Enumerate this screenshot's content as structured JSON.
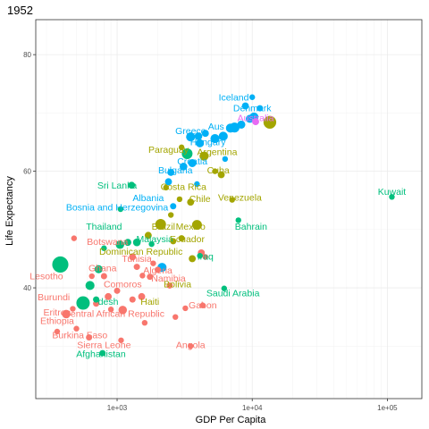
{
  "chart_data": {
    "type": "scatter",
    "title": "1952",
    "xlabel": "GDP Per Capita",
    "ylabel": "Life Expectancy",
    "x_scale": "log10",
    "xlim": [
      250,
      180000
    ],
    "ylim": [
      21,
      86
    ],
    "x_ticks": [
      1000,
      10000,
      100000
    ],
    "x_tick_labels": [
      "1e+03",
      "1e+04",
      "1e+05"
    ],
    "y_ticks": [
      40,
      60,
      80
    ],
    "y_tick_labels": [
      "40",
      "60",
      "80"
    ],
    "grid": true,
    "legend": "none",
    "colors": {
      "Africa": "#F8766D",
      "Americas": "#A3A500",
      "Asia": "#00BF7D",
      "Europe": "#00B0F6",
      "Oceania": "#E76BF3"
    },
    "points": [
      {
        "x": 380,
        "y": 44.0,
        "size": 8.0,
        "group": "Asia"
      },
      {
        "x": 560,
        "y": 37.4,
        "size": 5.5,
        "group": "Asia"
      },
      {
        "x": 360,
        "y": 32.5,
        "size": 1.0,
        "group": "Africa"
      },
      {
        "x": 420,
        "y": 35.5,
        "size": 2.2,
        "group": "Africa"
      },
      {
        "x": 470,
        "y": 36.4,
        "size": 1.0,
        "group": "Africa"
      },
      {
        "x": 500,
        "y": 33.0,
        "size": 1.0,
        "group": "Africa"
      },
      {
        "x": 620,
        "y": 31.5,
        "size": 1.2,
        "group": "Africa"
      },
      {
        "x": 700,
        "y": 37.3,
        "size": 1.2,
        "group": "Africa"
      },
      {
        "x": 730,
        "y": 43.2,
        "size": 2.0,
        "group": "Asia"
      },
      {
        "x": 780,
        "y": 28.8,
        "size": 1.2,
        "group": "Asia"
      },
      {
        "x": 800,
        "y": 42.0,
        "size": 1.2,
        "group": "Africa"
      },
      {
        "x": 860,
        "y": 38.5,
        "size": 1.5,
        "group": "Africa"
      },
      {
        "x": 900,
        "y": 36.3,
        "size": 1.0,
        "group": "Africa"
      },
      {
        "x": 1000,
        "y": 39.5,
        "size": 1.2,
        "group": "Africa"
      },
      {
        "x": 1100,
        "y": 36.2,
        "size": 2.2,
        "group": "Africa"
      },
      {
        "x": 1300,
        "y": 38.0,
        "size": 1.2,
        "group": "Africa"
      },
      {
        "x": 1520,
        "y": 38.5,
        "size": 1.5,
        "group": "Africa"
      },
      {
        "x": 1400,
        "y": 43.6,
        "size": 1.2,
        "group": "Africa"
      },
      {
        "x": 1300,
        "y": 45.3,
        "size": 1.5,
        "group": "Africa"
      },
      {
        "x": 1540,
        "y": 42.1,
        "size": 1.0,
        "group": "Africa"
      },
      {
        "x": 1750,
        "y": 41.9,
        "size": 1.2,
        "group": "Africa"
      },
      {
        "x": 2000,
        "y": 43.1,
        "size": 1.2,
        "group": "Africa"
      },
      {
        "x": 2450,
        "y": 40.4,
        "size": 1.2,
        "group": "Africa"
      },
      {
        "x": 2700,
        "y": 35.0,
        "size": 1.0,
        "group": "Africa"
      },
      {
        "x": 3200,
        "y": 36.5,
        "size": 1.0,
        "group": "Africa"
      },
      {
        "x": 3500,
        "y": 30.0,
        "size": 1.0,
        "group": "Africa"
      },
      {
        "x": 4300,
        "y": 37.0,
        "size": 1.0,
        "group": "Africa"
      },
      {
        "x": 4500,
        "y": 45.3,
        "size": 1.0,
        "group": "Africa"
      },
      {
        "x": 480,
        "y": 48.5,
        "size": 1.0,
        "group": "Africa"
      },
      {
        "x": 650,
        "y": 42.0,
        "size": 1.0,
        "group": "Africa"
      },
      {
        "x": 1070,
        "y": 31.0,
        "size": 1.0,
        "group": "Africa"
      },
      {
        "x": 1600,
        "y": 34.0,
        "size": 1.0,
        "group": "Africa"
      },
      {
        "x": 2150,
        "y": 43.5,
        "size": 2.5,
        "group": "Europe"
      },
      {
        "x": 1850,
        "y": 44.2,
        "size": 1.0,
        "group": "Africa"
      },
      {
        "x": 1280,
        "y": 57.6,
        "size": 1.5,
        "group": "Asia"
      },
      {
        "x": 1700,
        "y": 49.0,
        "size": 1.5,
        "group": "Americas"
      },
      {
        "x": 2100,
        "y": 50.9,
        "size": 3.5,
        "group": "Americas"
      },
      {
        "x": 2600,
        "y": 48.0,
        "size": 1.2,
        "group": "Americas"
      },
      {
        "x": 3000,
        "y": 48.5,
        "size": 1.2,
        "group": "Americas"
      },
      {
        "x": 3600,
        "y": 45.0,
        "size": 1.5,
        "group": "Americas"
      },
      {
        "x": 3500,
        "y": 54.7,
        "size": 1.5,
        "group": "Americas"
      },
      {
        "x": 3900,
        "y": 50.8,
        "size": 3.0,
        "group": "Americas"
      },
      {
        "x": 2300,
        "y": 57.2,
        "size": 1.0,
        "group": "Americas"
      },
      {
        "x": 3300,
        "y": 63.0,
        "size": 3.5,
        "group": "Asia"
      },
      {
        "x": 3000,
        "y": 64.1,
        "size": 1.0,
        "group": "Americas"
      },
      {
        "x": 4400,
        "y": 62.6,
        "size": 2.5,
        "group": "Americas"
      },
      {
        "x": 5900,
        "y": 59.4,
        "size": 1.5,
        "group": "Americas"
      },
      {
        "x": 7100,
        "y": 55.1,
        "size": 1.0,
        "group": "Americas"
      },
      {
        "x": 5300,
        "y": 60.0,
        "size": 1.0,
        "group": "Americas"
      },
      {
        "x": 2900,
        "y": 55.2,
        "size": 1.0,
        "group": "Americas"
      },
      {
        "x": 2500,
        "y": 52.5,
        "size": 1.0,
        "group": "Americas"
      },
      {
        "x": 13500,
        "y": 68.4,
        "size": 5.0,
        "group": "Americas"
      },
      {
        "x": 6200,
        "y": 39.9,
        "size": 1.0,
        "group": "Asia"
      },
      {
        "x": 4100,
        "y": 45.5,
        "size": 1.0,
        "group": "Asia"
      },
      {
        "x": 7900,
        "y": 51.6,
        "size": 1.0,
        "group": "Asia"
      },
      {
        "x": 108000,
        "y": 55.6,
        "size": 1.0,
        "group": "Asia"
      },
      {
        "x": 1200,
        "y": 47.8,
        "size": 1.5,
        "group": "Asia"
      },
      {
        "x": 1800,
        "y": 47.5,
        "size": 1.0,
        "group": "Asia"
      },
      {
        "x": 4200,
        "y": 46.0,
        "size": 1.5,
        "group": "Africa"
      },
      {
        "x": 1050,
        "y": 47.4,
        "size": 2.2,
        "group": "Asia"
      },
      {
        "x": 1400,
        "y": 47.8,
        "size": 1.8,
        "group": "Asia"
      },
      {
        "x": 630,
        "y": 40.4,
        "size": 2.5,
        "group": "Asia"
      },
      {
        "x": 700,
        "y": 38.0,
        "size": 1.2,
        "group": "Asia"
      },
      {
        "x": 1060,
        "y": 53.5,
        "size": 1.0,
        "group": "Asia"
      },
      {
        "x": 800,
        "y": 46.8,
        "size": 1.0,
        "group": "Asia"
      },
      {
        "x": 2600,
        "y": 54.0,
        "size": 1.2,
        "group": "Europe"
      },
      {
        "x": 2400,
        "y": 58.2,
        "size": 1.5,
        "group": "Europe"
      },
      {
        "x": 2500,
        "y": 59.8,
        "size": 1.5,
        "group": "Europe"
      },
      {
        "x": 3100,
        "y": 60.8,
        "size": 1.8,
        "group": "Europe"
      },
      {
        "x": 3600,
        "y": 61.4,
        "size": 2.0,
        "group": "Europe"
      },
      {
        "x": 4100,
        "y": 64.8,
        "size": 2.0,
        "group": "Europe"
      },
      {
        "x": 3500,
        "y": 65.9,
        "size": 2.5,
        "group": "Europe"
      },
      {
        "x": 4000,
        "y": 66.0,
        "size": 1.8,
        "group": "Europe"
      },
      {
        "x": 4500,
        "y": 66.5,
        "size": 1.5,
        "group": "Europe"
      },
      {
        "x": 5300,
        "y": 65.6,
        "size": 2.5,
        "group": "Europe"
      },
      {
        "x": 6100,
        "y": 66.0,
        "size": 2.5,
        "group": "Europe"
      },
      {
        "x": 6900,
        "y": 67.4,
        "size": 2.5,
        "group": "Europe"
      },
      {
        "x": 7400,
        "y": 67.5,
        "size": 3.0,
        "group": "Europe"
      },
      {
        "x": 8300,
        "y": 68.0,
        "size": 2.0,
        "group": "Europe"
      },
      {
        "x": 8900,
        "y": 71.2,
        "size": 1.5,
        "group": "Europe"
      },
      {
        "x": 9600,
        "y": 69.0,
        "size": 2.0,
        "group": "Europe"
      },
      {
        "x": 10000,
        "y": 72.7,
        "size": 1.0,
        "group": "Europe"
      },
      {
        "x": 10600,
        "y": 68.5,
        "size": 1.5,
        "group": "Oceania"
      },
      {
        "x": 10300,
        "y": 69.3,
        "size": 2.5,
        "group": "Europe"
      },
      {
        "x": 11400,
        "y": 70.8,
        "size": 1.2,
        "group": "Europe"
      },
      {
        "x": 6300,
        "y": 62.1,
        "size": 1.0,
        "group": "Europe"
      },
      {
        "x": 3900,
        "y": 57.8,
        "size": 1.0,
        "group": "Europe"
      }
    ],
    "labels": [
      {
        "text": "Iceland",
        "x": 7300,
        "y": 72.7,
        "group": "Europe"
      },
      {
        "text": "Denmark",
        "x": 10000,
        "y": 70.8,
        "group": "Europe"
      },
      {
        "text": "Australia",
        "x": 10600,
        "y": 69.1,
        "group": "Oceania"
      },
      {
        "text": "Aus",
        "x": 5400,
        "y": 67.7,
        "group": "Europe"
      },
      {
        "text": "Greece",
        "x": 3500,
        "y": 66.9,
        "group": "Europe"
      },
      {
        "text": "Hungary",
        "x": 4700,
        "y": 65.0,
        "group": "Europe"
      },
      {
        "text": "Paraguay",
        "x": 2400,
        "y": 63.7,
        "group": "Americas"
      },
      {
        "text": "Argentina",
        "x": 5500,
        "y": 63.3,
        "group": "Americas"
      },
      {
        "text": "Croatia",
        "x": 3600,
        "y": 61.7,
        "group": "Europe"
      },
      {
        "text": "Bulgaria",
        "x": 2700,
        "y": 60.2,
        "group": "Europe"
      },
      {
        "text": "Cuba",
        "x": 5600,
        "y": 60.2,
        "group": "Americas"
      },
      {
        "text": "Sri Lanka",
        "x": 1000,
        "y": 57.6,
        "group": "Asia"
      },
      {
        "text": "Costa Rica",
        "x": 3100,
        "y": 57.3,
        "group": "Americas"
      },
      {
        "text": "Albania",
        "x": 1700,
        "y": 55.4,
        "group": "Europe"
      },
      {
        "text": "Chile",
        "x": 4100,
        "y": 55.3,
        "group": "Americas"
      },
      {
        "text": "Venezuela",
        "x": 8100,
        "y": 55.5,
        "group": "Americas"
      },
      {
        "text": "Kuwait",
        "x": 108000,
        "y": 56.5,
        "group": "Asia"
      },
      {
        "text": "Bosnia and Herzegovina",
        "x": 1000,
        "y": 53.8,
        "group": "Europe"
      },
      {
        "text": "Thailand",
        "x": 800,
        "y": 50.5,
        "group": "Asia"
      },
      {
        "text": "Brazil",
        "x": 2200,
        "y": 50.5,
        "group": "Americas"
      },
      {
        "text": "Mexico",
        "x": 3500,
        "y": 50.5,
        "group": "Americas"
      },
      {
        "text": "Bahrain",
        "x": 9800,
        "y": 50.5,
        "group": "Asia"
      },
      {
        "text": "Malaysia",
        "x": 1900,
        "y": 48.4,
        "group": "Asia"
      },
      {
        "text": "Ecuador",
        "x": 3300,
        "y": 48.4,
        "group": "Americas"
      },
      {
        "text": "Botswana",
        "x": 850,
        "y": 47.9,
        "group": "Africa"
      },
      {
        "text": "Dominican Republic",
        "x": 1500,
        "y": 46.2,
        "group": "Americas"
      },
      {
        "text": "Iraq",
        "x": 4500,
        "y": 45.4,
        "group": "Asia"
      },
      {
        "text": "Tunisia",
        "x": 1400,
        "y": 45.0,
        "group": "Africa"
      },
      {
        "text": "Lesotho",
        "x": 300,
        "y": 42.0,
        "group": "Africa"
      },
      {
        "text": "Ghana",
        "x": 780,
        "y": 43.4,
        "group": "Africa"
      },
      {
        "text": "Algeria",
        "x": 2000,
        "y": 43.0,
        "group": "Africa"
      },
      {
        "text": "Namibia",
        "x": 2400,
        "y": 41.6,
        "group": "Africa"
      },
      {
        "text": "Comoros",
        "x": 1100,
        "y": 40.6,
        "group": "Africa"
      },
      {
        "text": "Bolivia",
        "x": 2800,
        "y": 40.6,
        "group": "Americas"
      },
      {
        "text": "Saudi Arabia",
        "x": 7200,
        "y": 39.1,
        "group": "Asia"
      },
      {
        "text": "Burundi",
        "x": 340,
        "y": 38.4,
        "group": "Africa"
      },
      {
        "text": "desh",
        "x": 860,
        "y": 37.6,
        "group": "Asia"
      },
      {
        "text": "Haiti",
        "x": 1750,
        "y": 37.6,
        "group": "Americas"
      },
      {
        "text": "Gabon",
        "x": 4300,
        "y": 37.0,
        "group": "Africa"
      },
      {
        "text": "Eritrea",
        "x": 360,
        "y": 35.8,
        "group": "Africa"
      },
      {
        "text": "Central African Republic",
        "x": 950,
        "y": 35.6,
        "group": "Africa"
      },
      {
        "text": "Ethiopia",
        "x": 360,
        "y": 34.3,
        "group": "Africa"
      },
      {
        "text": "Burkina Faso",
        "x": 530,
        "y": 31.9,
        "group": "Africa"
      },
      {
        "text": "Sierra Leone",
        "x": 800,
        "y": 30.2,
        "group": "Africa"
      },
      {
        "text": "Angola",
        "x": 3500,
        "y": 30.2,
        "group": "Africa"
      },
      {
        "text": "Afghanistan",
        "x": 760,
        "y": 28.7,
        "group": "Asia"
      }
    ]
  }
}
